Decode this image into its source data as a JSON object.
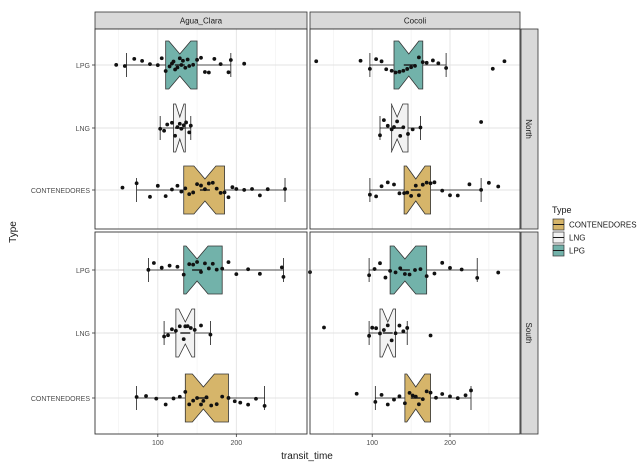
{
  "chart_data": {
    "type": "boxplot",
    "x_label": "transit_time",
    "y_label": "Type",
    "x_range": [
      20,
      290
    ],
    "x_ticks": [
      100,
      200
    ],
    "col_facets": [
      "Agua_Clara",
      "Cocoli"
    ],
    "row_facets": [
      "North",
      "South"
    ],
    "categories": [
      "LPG",
      "LNG",
      "CONTENEDORES"
    ],
    "legend": {
      "title": "Type",
      "position": "right",
      "items": [
        "CONTENEDORES",
        "LNG",
        "LPG"
      ]
    },
    "colors": {
      "CONTENEDORES": "#d6b56a",
      "LNG": "#f2f2f2",
      "LPG": "#72b2aa"
    },
    "panels": [
      {
        "col": "Agua_Clara",
        "row": "North",
        "boxes": [
          {
            "type": "LPG",
            "min": 60,
            "q1": 110,
            "median": 128,
            "q3": 150,
            "max": 193,
            "points": [
              47,
              58,
              70,
              80,
              90,
              100,
              105,
              110,
              115,
              118,
              120,
              122,
              125,
              128,
              130,
              132,
              135,
              138,
              140,
              145,
              150,
              155,
              160,
              165,
              172,
              180,
              190,
              193,
              210
            ]
          },
          {
            "type": "LNG",
            "min": 103,
            "q1": 120,
            "median": 128,
            "q3": 135,
            "max": 142,
            "points": [
              103,
              108,
              112,
              118,
              122,
              125,
              128,
              130,
              133,
              136,
              140,
              142
            ]
          },
          {
            "type": "CONTENEDORES",
            "min": 73,
            "q1": 133,
            "median": 160,
            "q3": 185,
            "max": 262,
            "points": [
              55,
              73,
              90,
              100,
              110,
              118,
              125,
              130,
              135,
              140,
              145,
              150,
              155,
              160,
              165,
              170,
              175,
              180,
              185,
              190,
              195,
              200,
              210,
              220,
              230,
              240,
              262
            ]
          }
        ]
      },
      {
        "col": "Cocoli",
        "row": "North",
        "boxes": [
          {
            "type": "LPG",
            "min": 97,
            "q1": 128,
            "median": 147,
            "q3": 165,
            "max": 195,
            "points": [
              28,
              85,
              97,
              105,
              112,
              118,
              125,
              130,
              135,
              140,
              145,
              150,
              155,
              160,
              165,
              170,
              178,
              185,
              195,
              255,
              270
            ]
          },
          {
            "type": "LNG",
            "min": 110,
            "q1": 125,
            "median": 132,
            "q3": 146,
            "max": 162,
            "points": [
              110,
              115,
              120,
              125,
              128,
              132,
              136,
              140,
              146,
              152,
              162,
              240
            ]
          },
          {
            "type": "CONTENEDORES",
            "min": 97,
            "q1": 141,
            "median": 156,
            "q3": 175,
            "max": 240,
            "points": [
              97,
              105,
              112,
              120,
              128,
              135,
              141,
              145,
              150,
              156,
              160,
              165,
              170,
              175,
              180,
              190,
              200,
              210,
              225,
              240,
              250,
              262
            ]
          }
        ]
      },
      {
        "col": "Agua_Clara",
        "row": "South",
        "boxes": [
          {
            "type": "LPG",
            "min": 88,
            "q1": 133,
            "median": 150,
            "q3": 182,
            "max": 260,
            "points": [
              88,
              95,
              105,
              115,
              125,
              133,
              140,
              145,
              150,
              155,
              160,
              165,
              170,
              175,
              182,
              190,
              200,
              215,
              230,
              258,
              260
            ]
          },
          {
            "type": "LNG",
            "min": 108,
            "q1": 123,
            "median": 135,
            "q3": 147,
            "max": 167,
            "points": [
              108,
              113,
              118,
              123,
              128,
              133,
              135,
              138,
              142,
              147,
              155,
              167
            ]
          },
          {
            "type": "CONTENEDORES",
            "min": 73,
            "q1": 135,
            "median": 158,
            "q3": 190,
            "max": 236,
            "points": [
              73,
              85,
              98,
              110,
              120,
              128,
              135,
              140,
              145,
              150,
              155,
              158,
              162,
              168,
              175,
              182,
              190,
              198,
              205,
              215,
              225,
              236
            ]
          }
        ]
      },
      {
        "col": "Cocoli",
        "row": "South",
        "boxes": [
          {
            "type": "LPG",
            "min": 96,
            "q1": 123,
            "median": 142,
            "q3": 170,
            "max": 235,
            "points": [
              20,
              96,
              103,
              110,
              117,
              123,
              130,
              136,
              142,
              148,
              155,
              162,
              170,
              180,
              190,
              200,
              215,
              235,
              262
            ]
          },
          {
            "type": "LNG",
            "min": 96,
            "q1": 110,
            "median": 120,
            "q3": 130,
            "max": 145,
            "points": [
              38,
              96,
              100,
              105,
              110,
              115,
              120,
              125,
              130,
              135,
              140,
              145,
              175
            ]
          },
          {
            "type": "CONTENEDORES",
            "min": 104,
            "q1": 142,
            "median": 156,
            "q3": 175,
            "max": 227,
            "points": [
              80,
              104,
              112,
              120,
              128,
              135,
              142,
              148,
              152,
              156,
              160,
              165,
              170,
              175,
              182,
              190,
              200,
              210,
              220,
              227
            ]
          }
        ]
      }
    ]
  }
}
